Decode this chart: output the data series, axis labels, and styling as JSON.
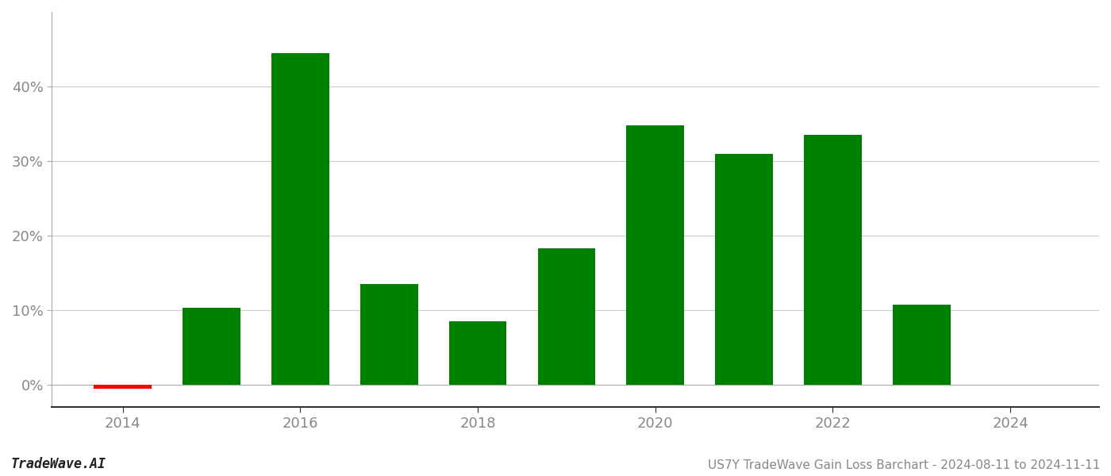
{
  "years": [
    2014,
    2015,
    2016,
    2017,
    2018,
    2019,
    2020,
    2021,
    2022,
    2023
  ],
  "values": [
    -0.5,
    10.3,
    44.5,
    13.5,
    8.5,
    18.3,
    34.8,
    31.0,
    33.5,
    10.7
  ],
  "colors": [
    "#ff0000",
    "#008000",
    "#008000",
    "#008000",
    "#008000",
    "#008000",
    "#008000",
    "#008000",
    "#008000",
    "#008000"
  ],
  "title": "US7Y TradeWave Gain Loss Barchart - 2024-08-11 to 2024-11-11",
  "watermark": "TradeWave.AI",
  "xlim": [
    2013.2,
    2025.0
  ],
  "ylim": [
    -3,
    50
  ],
  "yticks": [
    0,
    10,
    20,
    30,
    40
  ],
  "xticks": [
    2014,
    2016,
    2018,
    2020,
    2022,
    2024
  ],
  "bar_width": 0.65,
  "background_color": "#ffffff",
  "grid_color": "#cccccc",
  "axis_label_color": "#888888",
  "title_fontsize": 11,
  "watermark_fontsize": 12,
  "tick_fontsize": 13
}
